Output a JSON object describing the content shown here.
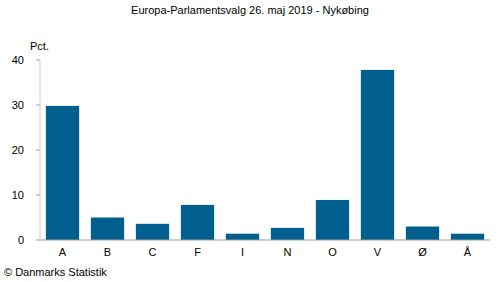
{
  "chart_data": {
    "type": "bar",
    "title": "Europa-Parlamentsvalg 26. maj 2019 - Nykøbing",
    "y_label": "Pct.",
    "source": "© Danmarks Statistik",
    "categories": [
      "A",
      "B",
      "C",
      "F",
      "I",
      "N",
      "O",
      "V",
      "Ø",
      "Å"
    ],
    "values": [
      29.8,
      5.0,
      3.6,
      7.8,
      1.4,
      2.7,
      8.9,
      37.8,
      3.0,
      1.4
    ],
    "color": "#005f8e",
    "ylim": [
      0,
      40
    ],
    "yticks": [
      0,
      10,
      20,
      30,
      40
    ],
    "grid": false
  }
}
